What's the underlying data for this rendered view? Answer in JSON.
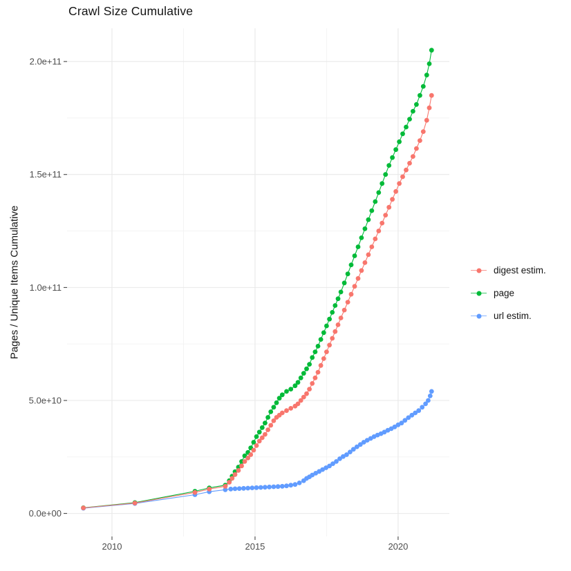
{
  "title": "Crawl Size Cumulative",
  "chart_data": {
    "type": "scatter",
    "title": "Crawl Size Cumulative",
    "xlabel": "",
    "ylabel": "Pages / Unique Items Cumulative",
    "x_domain": [
      2008.43,
      2021.79
    ],
    "y_domain": [
      -10200000000.0,
      214700000000.0
    ],
    "x_ticks": [
      {
        "value": 2010,
        "label": "2010"
      },
      {
        "value": 2015,
        "label": "2015"
      },
      {
        "value": 2020,
        "label": "2020"
      }
    ],
    "x_minor_ticks": [
      2012.5,
      2017.5
    ],
    "y_ticks": [
      {
        "value": 0,
        "label": "0.0e+00"
      },
      {
        "value": 50000000000.0,
        "label": "5.0e+10"
      },
      {
        "value": 100000000000.0,
        "label": "1.0e+11"
      },
      {
        "value": 150000000000.0,
        "label": "1.5e+11"
      },
      {
        "value": 200000000000.0,
        "label": "2.0e+11"
      }
    ],
    "y_minor_ticks": [
      25000000000.0,
      75000000000.0,
      125000000000.0,
      175000000000.0
    ],
    "grid": true,
    "legend_position": "right",
    "colors": {
      "grid_major": "#E8E8E8",
      "grid_minor": "#F2F2F2",
      "tick_mark": "#333333",
      "tick_label": "#4d4d4d"
    },
    "series": [
      {
        "name": "digest estim.",
        "color": "#F8766D",
        "points": [
          [
            2009.0,
            2450000000.0
          ],
          [
            2010.8,
            4600000000.0
          ],
          [
            2012.9,
            9300000000.0
          ],
          [
            2013.4,
            10800000000.0
          ],
          [
            2013.96,
            12000000000.0
          ],
          [
            2014.1,
            13800000000.0
          ],
          [
            2014.2,
            15500000000.0
          ],
          [
            2014.3,
            17200000000.0
          ],
          [
            2014.42,
            19000000000.0
          ],
          [
            2014.53,
            21000000000.0
          ],
          [
            2014.64,
            23000000000.0
          ],
          [
            2014.75,
            24500000000.0
          ],
          [
            2014.85,
            26000000000.0
          ],
          [
            2014.95,
            28000000000.0
          ],
          [
            2015.05,
            30000000000.0
          ],
          [
            2015.15,
            32000000000.0
          ],
          [
            2015.25,
            33500000000.0
          ],
          [
            2015.35,
            35000000000.0
          ],
          [
            2015.45,
            37000000000.0
          ],
          [
            2015.55,
            39000000000.0
          ],
          [
            2015.65,
            41000000000.0
          ],
          [
            2015.75,
            42500000000.0
          ],
          [
            2015.85,
            43500000000.0
          ],
          [
            2015.95,
            44500000000.0
          ],
          [
            2016.1,
            45500000000.0
          ],
          [
            2016.25,
            46500000000.0
          ],
          [
            2016.4,
            47500000000.0
          ],
          [
            2016.5,
            48500000000.0
          ],
          [
            2016.6,
            50000000000.0
          ],
          [
            2016.7,
            51500000000.0
          ],
          [
            2016.8,
            53000000000.0
          ],
          [
            2016.9,
            55000000000.0
          ],
          [
            2017.0,
            57500000000.0
          ],
          [
            2017.1,
            60000000000.0
          ],
          [
            2017.2,
            62500000000.0
          ],
          [
            2017.3,
            65500000000.0
          ],
          [
            2017.4,
            68500000000.0
          ],
          [
            2017.5,
            71500000000.0
          ],
          [
            2017.6,
            74500000000.0
          ],
          [
            2017.7,
            77500000000.0
          ],
          [
            2017.8,
            80500000000.0
          ],
          [
            2017.9,
            83500000000.0
          ],
          [
            2018.0,
            86500000000.0
          ],
          [
            2018.12,
            90000000000.0
          ],
          [
            2018.24,
            93500000000.0
          ],
          [
            2018.36,
            97000000000.0
          ],
          [
            2018.48,
            100500000000.0
          ],
          [
            2018.6,
            104000000000.0
          ],
          [
            2018.72,
            107500000000.0
          ],
          [
            2018.84,
            111000000000.0
          ],
          [
            2018.96,
            114500000000.0
          ],
          [
            2019.08,
            118000000000.0
          ],
          [
            2019.2,
            121500000000.0
          ],
          [
            2019.32,
            125000000000.0
          ],
          [
            2019.44,
            128500000000.0
          ],
          [
            2019.56,
            132000000000.0
          ],
          [
            2019.68,
            135500000000.0
          ],
          [
            2019.8,
            139000000000.0
          ],
          [
            2019.92,
            142500000000.0
          ],
          [
            2020.04,
            146000000000.0
          ],
          [
            2020.16,
            149000000000.0
          ],
          [
            2020.28,
            152000000000.0
          ],
          [
            2020.4,
            155000000000.0
          ],
          [
            2020.52,
            158000000000.0
          ],
          [
            2020.64,
            161500000000.0
          ],
          [
            2020.76,
            165000000000.0
          ],
          [
            2020.88,
            169000000000.0
          ],
          [
            2021.0,
            174000000000.0
          ],
          [
            2021.09,
            179500000000.0
          ],
          [
            2021.17,
            185000000000.0
          ]
        ]
      },
      {
        "name": "page",
        "color": "#00BA38",
        "points": [
          [
            2009.0,
            2500000000.0
          ],
          [
            2010.8,
            4800000000.0
          ],
          [
            2012.9,
            9800000000.0
          ],
          [
            2013.4,
            11300000000.0
          ],
          [
            2013.96,
            12500000000.0
          ],
          [
            2014.1,
            14500000000.0
          ],
          [
            2014.2,
            16500000000.0
          ],
          [
            2014.3,
            18500000000.0
          ],
          [
            2014.42,
            20500000000.0
          ],
          [
            2014.53,
            23000000000.0
          ],
          [
            2014.64,
            25500000000.0
          ],
          [
            2014.75,
            27000000000.0
          ],
          [
            2014.85,
            29000000000.0
          ],
          [
            2014.95,
            31500000000.0
          ],
          [
            2015.05,
            34000000000.0
          ],
          [
            2015.15,
            36000000000.0
          ],
          [
            2015.25,
            38000000000.0
          ],
          [
            2015.35,
            40000000000.0
          ],
          [
            2015.45,
            42500000000.0
          ],
          [
            2015.55,
            45000000000.0
          ],
          [
            2015.65,
            47000000000.0
          ],
          [
            2015.75,
            49000000000.0
          ],
          [
            2015.85,
            51000000000.0
          ],
          [
            2015.95,
            52500000000.0
          ],
          [
            2016.1,
            54000000000.0
          ],
          [
            2016.25,
            55000000000.0
          ],
          [
            2016.4,
            56500000000.0
          ],
          [
            2016.5,
            58000000000.0
          ],
          [
            2016.6,
            60000000000.0
          ],
          [
            2016.7,
            62000000000.0
          ],
          [
            2016.8,
            64000000000.0
          ],
          [
            2016.9,
            66000000000.0
          ],
          [
            2017.0,
            69000000000.0
          ],
          [
            2017.1,
            71500000000.0
          ],
          [
            2017.2,
            74000000000.0
          ],
          [
            2017.3,
            77000000000.0
          ],
          [
            2017.4,
            80000000000.0
          ],
          [
            2017.5,
            83000000000.0
          ],
          [
            2017.6,
            86000000000.0
          ],
          [
            2017.7,
            89000000000.0
          ],
          [
            2017.8,
            92000000000.0
          ],
          [
            2017.9,
            95000000000.0
          ],
          [
            2018.0,
            98000000000.0
          ],
          [
            2018.12,
            102000000000.0
          ],
          [
            2018.24,
            106000000000.0
          ],
          [
            2018.36,
            110000000000.0
          ],
          [
            2018.48,
            114000000000.0
          ],
          [
            2018.6,
            118000000000.0
          ],
          [
            2018.72,
            122000000000.0
          ],
          [
            2018.84,
            126000000000.0
          ],
          [
            2018.96,
            130000000000.0
          ],
          [
            2019.08,
            134000000000.0
          ],
          [
            2019.2,
            138000000000.0
          ],
          [
            2019.32,
            142000000000.0
          ],
          [
            2019.44,
            146000000000.0
          ],
          [
            2019.56,
            150000000000.0
          ],
          [
            2019.68,
            154000000000.0
          ],
          [
            2019.8,
            157500000000.0
          ],
          [
            2019.92,
            161000000000.0
          ],
          [
            2020.04,
            164500000000.0
          ],
          [
            2020.16,
            168000000000.0
          ],
          [
            2020.28,
            171000000000.0
          ],
          [
            2020.4,
            174500000000.0
          ],
          [
            2020.52,
            178000000000.0
          ],
          [
            2020.64,
            181000000000.0
          ],
          [
            2020.76,
            185000000000.0
          ],
          [
            2020.88,
            189000000000.0
          ],
          [
            2021.0,
            194000000000.0
          ],
          [
            2021.09,
            199000000000.0
          ],
          [
            2021.17,
            205000000000.0
          ]
        ]
      },
      {
        "name": "url estim.",
        "color": "#619CFF",
        "points": [
          [
            2009.0,
            2300000000.0
          ],
          [
            2010.8,
            4400000000.0
          ],
          [
            2012.9,
            8300000000.0
          ],
          [
            2013.4,
            9600000000.0
          ],
          [
            2013.96,
            10500000000.0
          ],
          [
            2014.15,
            10800000000.0
          ],
          [
            2014.3,
            10900000000.0
          ],
          [
            2014.45,
            11000000000.0
          ],
          [
            2014.6,
            11100000000.0
          ],
          [
            2014.75,
            11200000000.0
          ],
          [
            2014.9,
            11300000000.0
          ],
          [
            2015.05,
            11400000000.0
          ],
          [
            2015.2,
            11500000000.0
          ],
          [
            2015.35,
            11600000000.0
          ],
          [
            2015.5,
            11700000000.0
          ],
          [
            2015.65,
            11800000000.0
          ],
          [
            2015.8,
            11900000000.0
          ],
          [
            2015.95,
            12000000000.0
          ],
          [
            2016.1,
            12200000000.0
          ],
          [
            2016.25,
            12500000000.0
          ],
          [
            2016.4,
            12800000000.0
          ],
          [
            2016.55,
            13500000000.0
          ],
          [
            2016.7,
            14500000000.0
          ],
          [
            2016.8,
            15500000000.0
          ],
          [
            2016.9,
            16200000000.0
          ],
          [
            2017.0,
            17000000000.0
          ],
          [
            2017.12,
            17800000000.0
          ],
          [
            2017.24,
            18600000000.0
          ],
          [
            2017.36,
            19400000000.0
          ],
          [
            2017.48,
            20200000000.0
          ],
          [
            2017.6,
            21000000000.0
          ],
          [
            2017.72,
            22000000000.0
          ],
          [
            2017.84,
            23000000000.0
          ],
          [
            2017.96,
            24200000000.0
          ],
          [
            2018.08,
            25200000000.0
          ],
          [
            2018.2,
            26000000000.0
          ],
          [
            2018.32,
            27200000000.0
          ],
          [
            2018.44,
            28400000000.0
          ],
          [
            2018.56,
            29500000000.0
          ],
          [
            2018.68,
            30500000000.0
          ],
          [
            2018.8,
            31500000000.0
          ],
          [
            2018.92,
            32400000000.0
          ],
          [
            2019.04,
            33200000000.0
          ],
          [
            2019.16,
            34000000000.0
          ],
          [
            2019.28,
            34700000000.0
          ],
          [
            2019.4,
            35300000000.0
          ],
          [
            2019.52,
            36000000000.0
          ],
          [
            2019.64,
            36800000000.0
          ],
          [
            2019.76,
            37500000000.0
          ],
          [
            2019.88,
            38300000000.0
          ],
          [
            2020.0,
            39200000000.0
          ],
          [
            2020.12,
            40000000000.0
          ],
          [
            2020.24,
            41200000000.0
          ],
          [
            2020.36,
            42400000000.0
          ],
          [
            2020.48,
            43500000000.0
          ],
          [
            2020.6,
            44500000000.0
          ],
          [
            2020.72,
            45500000000.0
          ],
          [
            2020.84,
            47000000000.0
          ],
          [
            2020.96,
            48500000000.0
          ],
          [
            2021.05,
            50000000000.0
          ],
          [
            2021.12,
            52000000000.0
          ],
          [
            2021.17,
            54000000000.0
          ]
        ]
      }
    ]
  }
}
